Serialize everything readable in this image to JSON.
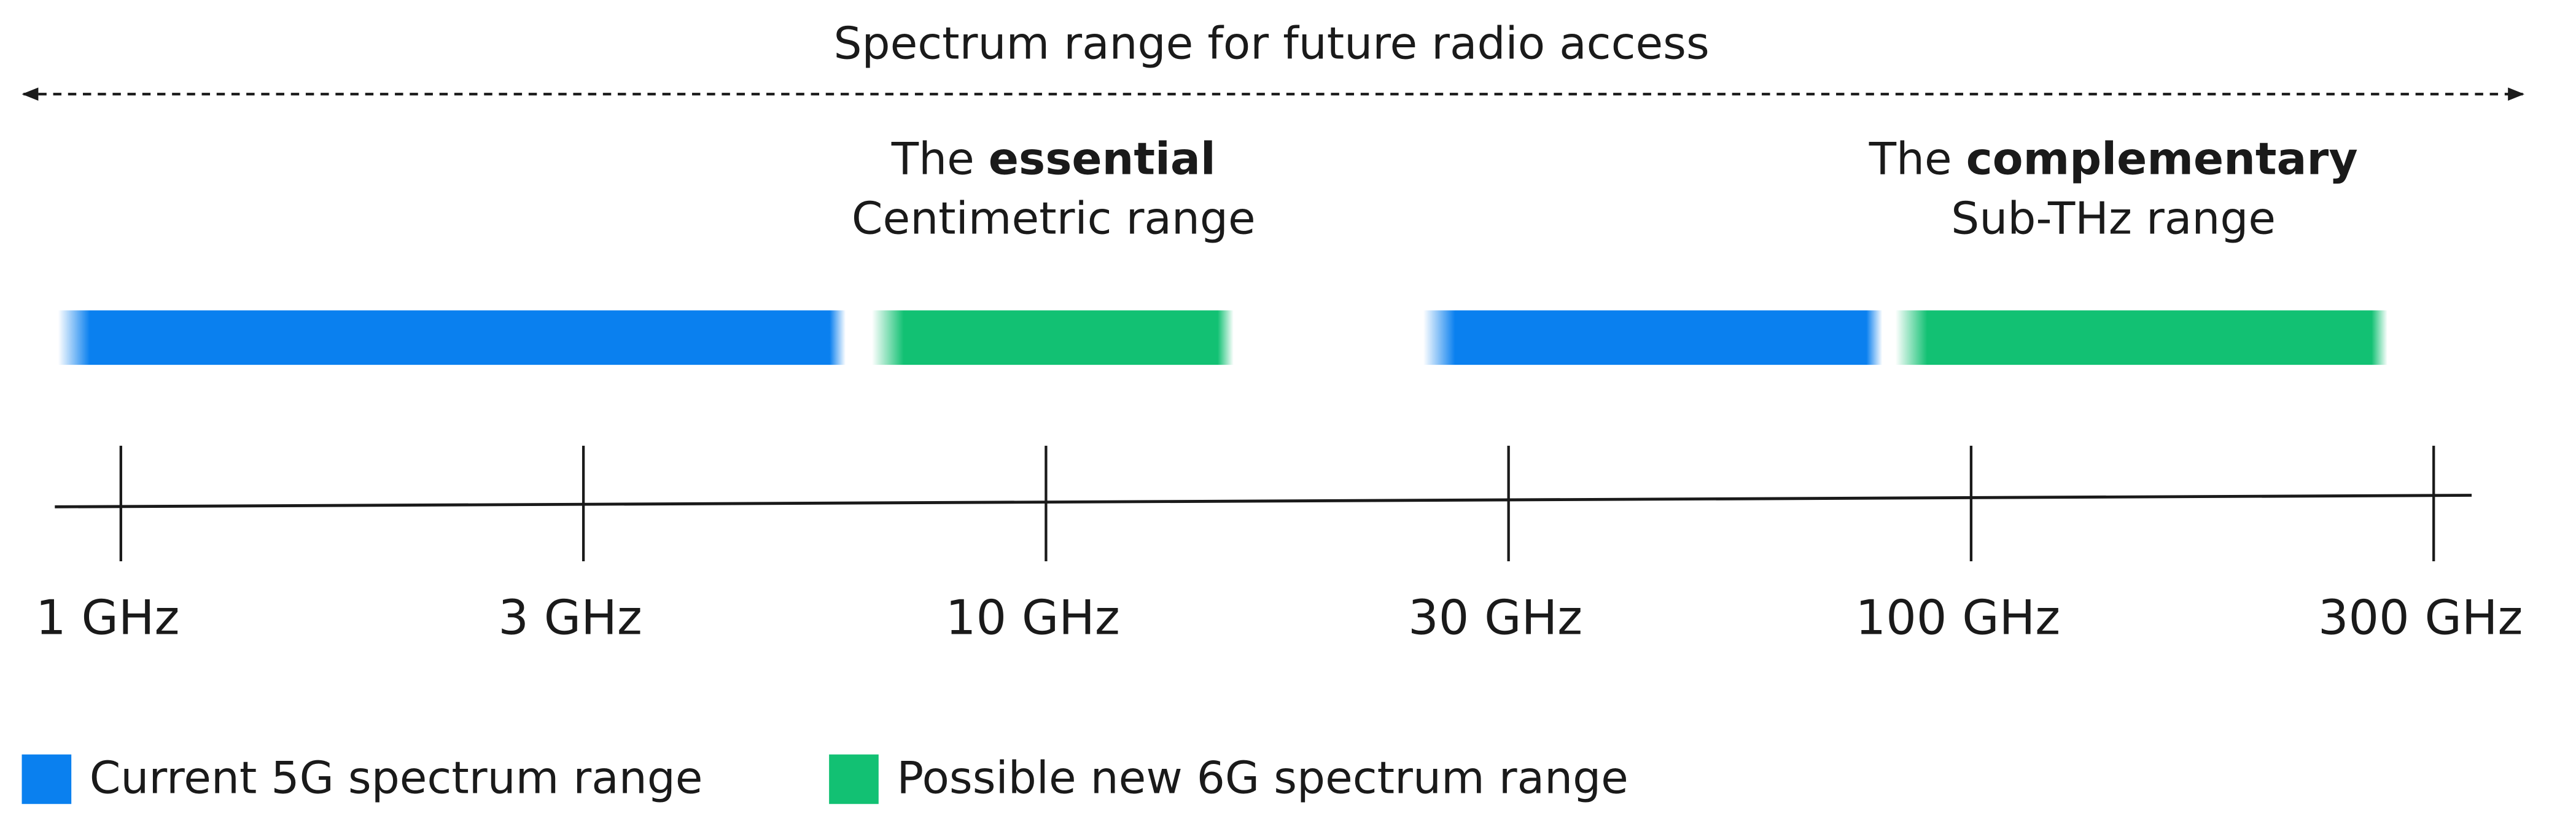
{
  "title": "Spectrum range for future radio access",
  "ranges": [
    {
      "prefix": "The",
      "emphasis": "essential",
      "name": "Centimetric range"
    },
    {
      "prefix": "The",
      "emphasis": "complementary",
      "name": "Sub-THz range"
    }
  ],
  "axis_labels": [
    "1 GHz",
    "3 GHz",
    "10 GHz",
    "30 GHz",
    "100 GHz",
    "300 GHz"
  ],
  "legend": [
    {
      "label": "Current 5G spectrum range",
      "color": "#0a80ef"
    },
    {
      "label": "Possible new 6G spectrum range",
      "color": "#12c173"
    }
  ]
}
